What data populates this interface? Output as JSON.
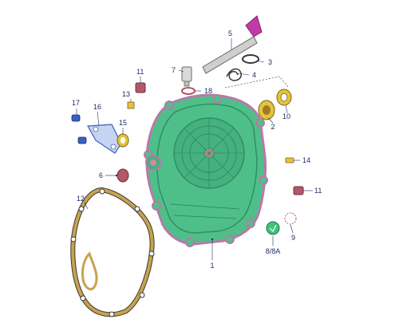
{
  "callouts": {
    "c1": "1",
    "c2": "2",
    "c3": "3",
    "c4": "4",
    "c5": "5",
    "c6": "6",
    "c7": "7",
    "c8": "8/8A",
    "c9": "9",
    "c10": "10",
    "c11a": "11",
    "c11b": "11",
    "c12": "12",
    "c13": "13",
    "c14": "14",
    "c15": "15",
    "c16": "16",
    "c17": "17",
    "c18": "18"
  },
  "colors": {
    "cover_fill": "#4fbf8a",
    "cover_dark": "#2f8f63",
    "cover_outline": "#b77aa8",
    "gasket": "#c9a24c",
    "gasket_edge": "#3a3a3a",
    "leader": "#1f2a6e",
    "seal_yellow": "#e8c23a",
    "bolt_blue": "#3a5fbf",
    "plug_red": "#b5566a",
    "shaft_gray": "#cfcfcf",
    "lever_magenta": "#c23aa8",
    "window_green": "#3fc27a"
  }
}
